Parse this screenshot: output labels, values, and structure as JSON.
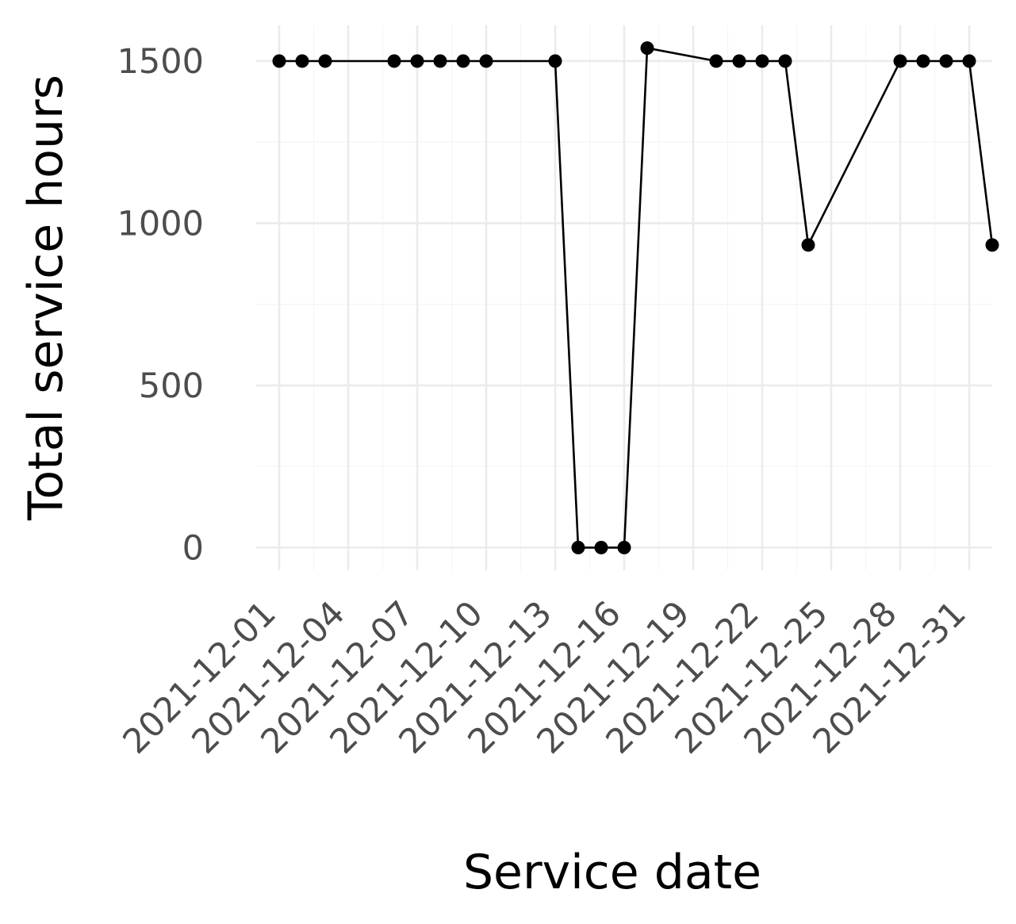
{
  "chart_data": {
    "type": "line",
    "title": "",
    "xlabel": "Service date",
    "ylabel": "Total service hours",
    "x_tick_labels": [
      "2021-12-01",
      "2021-12-04",
      "2021-12-07",
      "2021-12-10",
      "2021-12-13",
      "2021-12-16",
      "2021-12-19",
      "2021-12-22",
      "2021-12-25",
      "2021-12-28",
      "2021-12-31"
    ],
    "y_ticks": [
      0,
      500,
      1000,
      1500
    ],
    "ylim": [
      -70,
      1610
    ],
    "xlim": [
      "2021-11-30",
      "2022-01-01"
    ],
    "grid": true,
    "series": [
      {
        "color": "#000000",
        "points": [
          {
            "x": "2021-12-01",
            "y": 1500
          },
          {
            "x": "2021-12-02",
            "y": 1500
          },
          {
            "x": "2021-12-03",
            "y": 1500
          },
          {
            "x": "2021-12-06",
            "y": 1500
          },
          {
            "x": "2021-12-07",
            "y": 1500
          },
          {
            "x": "2021-12-08",
            "y": 1500
          },
          {
            "x": "2021-12-09",
            "y": 1500
          },
          {
            "x": "2021-12-10",
            "y": 1500
          },
          {
            "x": "2021-12-13",
            "y": 1500
          },
          {
            "x": "2021-12-14",
            "y": 0
          },
          {
            "x": "2021-12-15",
            "y": 0
          },
          {
            "x": "2021-12-16",
            "y": 0
          },
          {
            "x": "2021-12-17",
            "y": 1540
          },
          {
            "x": "2021-12-20",
            "y": 1500
          },
          {
            "x": "2021-12-21",
            "y": 1500
          },
          {
            "x": "2021-12-22",
            "y": 1500
          },
          {
            "x": "2021-12-23",
            "y": 1500
          },
          {
            "x": "2021-12-24",
            "y": 933
          },
          {
            "x": "2021-12-28",
            "y": 1500
          },
          {
            "x": "2021-12-29",
            "y": 1500
          },
          {
            "x": "2021-12-30",
            "y": 1500
          },
          {
            "x": "2021-12-31",
            "y": 1500
          },
          {
            "x": "2022-01-01",
            "y": 933
          }
        ]
      }
    ]
  }
}
